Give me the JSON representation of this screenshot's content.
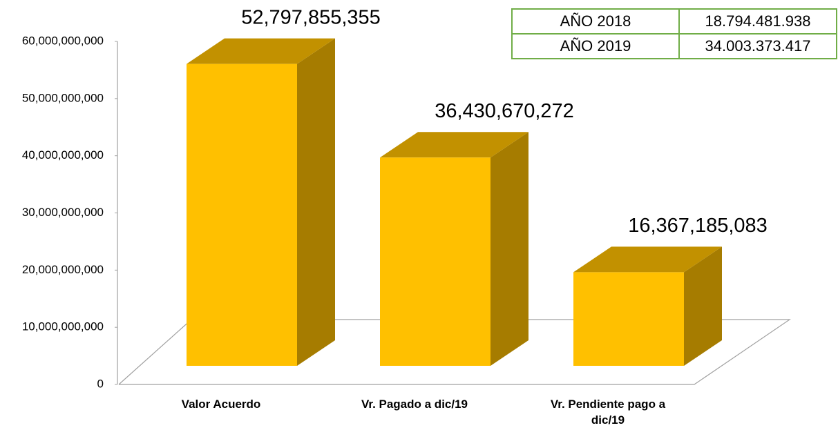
{
  "chart_data": {
    "type": "bar3d",
    "categories": [
      "Valor Acuerdo",
      "Vr. Pagado a dic/19",
      "Vr. Pendiente pago a dic/19"
    ],
    "values": [
      52797855355,
      36430670272,
      16367185083
    ],
    "value_labels": [
      "52,797,855,355",
      "36,430,670,272",
      "16,367,185,083"
    ],
    "color": "#ffc000",
    "ylim": [
      0,
      60000000000
    ],
    "yticks": [
      0,
      {
        "value": 10000000000,
        "label": "10,000,000,000"
      },
      {
        "value": 20000000000,
        "label": "20,000,000,000"
      },
      {
        "value": 30000000000,
        "label": "30,000,000,000"
      },
      {
        "value": 40000000000,
        "label": "40,000,000,000"
      },
      {
        "value": 50000000000,
        "label": "50,000,000,000"
      },
      {
        "value": 60000000000,
        "label": "60,000,000,000"
      }
    ]
  },
  "table": {
    "rows": [
      [
        "AÑO 2018",
        "18.794.481.938"
      ],
      [
        "AÑO 2019",
        "34.003.373.417"
      ]
    ]
  }
}
